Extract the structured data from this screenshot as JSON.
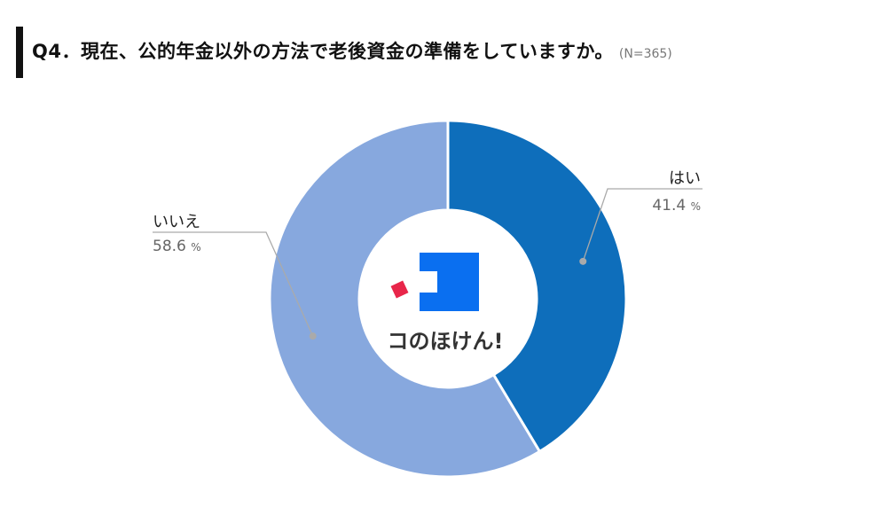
{
  "title": {
    "main": "Q4．現在、公的年金以外の方法で老後資金の準備をしていますか。",
    "sample": "(N=365)"
  },
  "chart_data": {
    "type": "pie",
    "donut": true,
    "title": "Q4．現在、公的年金以外の方法で老後資金の準備をしていますか。",
    "note": "(N=365)",
    "unit": "%",
    "categories": [
      "はい",
      "いいえ"
    ],
    "values": [
      41.4,
      58.6
    ],
    "colors": [
      "#0e6ebb",
      "#87a8de"
    ],
    "label_color": "#666666",
    "leader_color": "#aaaaaa"
  },
  "logo": {
    "text": "コのほけん!",
    "mark_blue": "#0a6ff0",
    "mark_red": "#e8264a"
  }
}
